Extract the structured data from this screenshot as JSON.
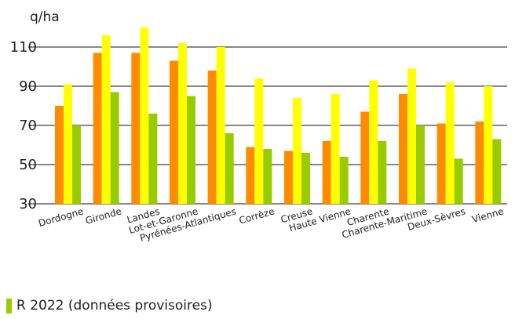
{
  "chart_data": {
    "type": "bar",
    "ylabel": "q/ha",
    "ylim": [
      30,
      120
    ],
    "yticks": [
      30,
      50,
      70,
      90,
      110
    ],
    "grid": "horizontal",
    "categories": [
      "Dordogne",
      "Gironde",
      "Landes",
      "Lot-et-Garonne",
      "Pyrénées-Atlantiques",
      "Corrèze",
      "Creuse",
      "Haute Vienne",
      "Charente",
      "Charente-Maritime",
      "Deux-Sèvres",
      "Vienne"
    ],
    "series": [
      {
        "name": "",
        "color": "#ff8c00",
        "values": [
          80,
          107,
          107,
          103,
          98,
          59,
          57,
          62,
          77,
          86,
          71,
          72
        ]
      },
      {
        "name": "",
        "color": "#ffff00",
        "values": [
          91,
          116,
          120,
          112,
          110,
          94,
          84,
          86,
          93,
          99,
          92,
          90
        ]
      },
      {
        "name": "R 2022 (données provisoires)",
        "color": "#99cc00",
        "values": [
          70,
          87,
          76,
          85,
          66,
          58,
          56,
          54,
          62,
          70,
          53,
          63
        ]
      }
    ],
    "legend": {
      "position": "bottom-left",
      "label": "R 2022 (données provisoires)",
      "color": "#99cc00"
    }
  }
}
